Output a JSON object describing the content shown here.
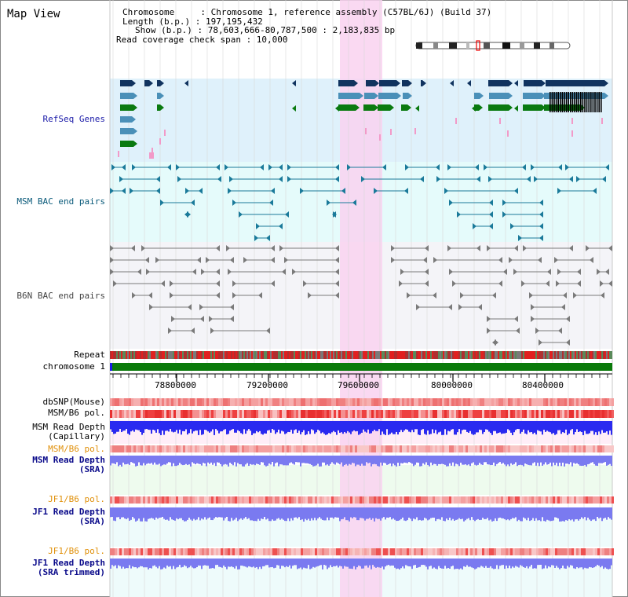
{
  "title": "Map View",
  "info": {
    "chromosome": "Chromosome     : Chromosome 1, reference assembly (C57BL/6J) (Build 37)",
    "length": "Length (b.p.) : 197,195,432",
    "show": "Show (b.p.) : 78,603,666-80,787,500 : 2,183,835 bp",
    "coverage": "Read coverage check span : 10,000"
  },
  "tracks": {
    "refseq": "RefSeq Genes",
    "msm_bac": "MSM BAC end pairs",
    "b6n_bac": "B6N BAC end pairs",
    "repeat": "Repeat",
    "chromosome": "chromosome 1",
    "dbsnp": "dbSNP(Mouse)",
    "msm_pol": "MSM/B6 pol.",
    "msm_depth_cap_1": "MSM Read Depth",
    "msm_depth_cap_2": "(Capillary)",
    "msm_pol2": "MSM/B6 pol.",
    "msm_depth_sra_1": "MSM Read Depth",
    "msm_depth_sra_2": "(SRA)",
    "jf1_pol": "JF1/B6 pol.",
    "jf1_depth_sra_1": "JF1 Read Depth",
    "jf1_depth_sra_2": "(SRA)",
    "jf1_pol2": "JF1/B6 pol.",
    "jf1_depth_trim_1": "JF1 Read Depth",
    "jf1_depth_trim_2": "(SRA trimmed)"
  },
  "axis_ticks": [
    "78800000",
    "79200000",
    "79600000",
    "80000000",
    "80400000"
  ],
  "colors": {
    "highlight": "#f9d2f0",
    "refseq_bg": "#dff1fb",
    "msm_bg": "#e5fbfb",
    "b6n_bg": "#f4f4f8",
    "navy": "#10335f",
    "steel": "#4a90b8",
    "green": "#0a7a10",
    "teal": "#1a7a9a",
    "gray": "#7a7a7a",
    "chromosome": "#0a7a0a",
    "depth_blue": "#1a1ae8",
    "depth_purple": "#7a7af0",
    "pol_red": "#ee5a5a"
  }
}
